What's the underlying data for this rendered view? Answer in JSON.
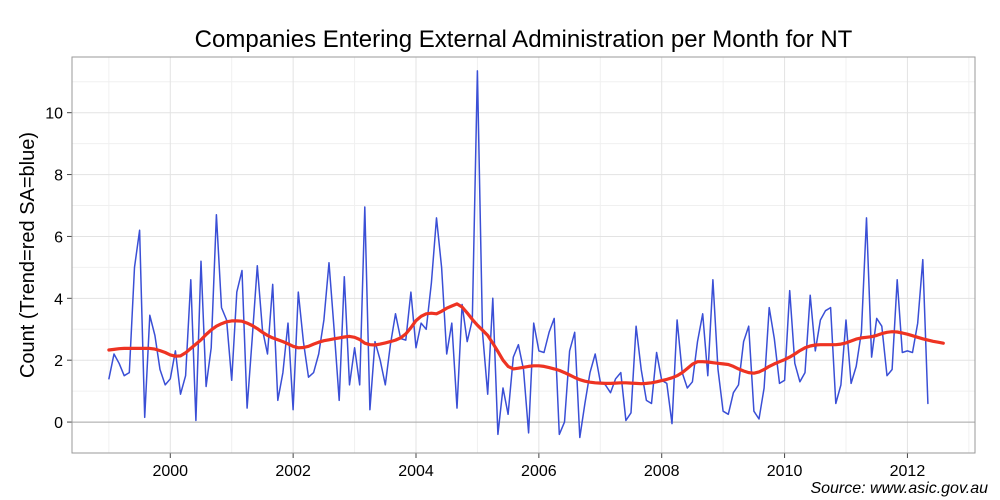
{
  "chart_data": {
    "type": "line",
    "title": "Companies Entering External Administration per Month for NT",
    "xlabel": "",
    "ylabel": "Count (Trend=red SA=blue)",
    "source": "Source: www.asic.gov.au",
    "xlim": [
      1998.4,
      2013.1
    ],
    "ylim": [
      -1.0,
      11.8
    ],
    "x_ticks": [
      2000,
      2002,
      2004,
      2006,
      2008,
      2010,
      2012
    ],
    "x_tick_labels": [
      "2000",
      "2002",
      "2004",
      "2006",
      "2008",
      "2010",
      "2012"
    ],
    "y_ticks": [
      0,
      2,
      4,
      6,
      8,
      10
    ],
    "y_tick_labels": [
      "0",
      "2",
      "4",
      "6",
      "8",
      "10"
    ],
    "grid": true,
    "start": 1999.0,
    "step": 0.0833333,
    "colors": {
      "sa": "#3a4fd6",
      "trend": "#ee3322"
    },
    "series": [
      {
        "name": "SA",
        "color": "#3a4fd6",
        "values": [
          1.4,
          2.2,
          1.9,
          1.5,
          1.6,
          5.0,
          6.2,
          0.15,
          3.45,
          2.8,
          1.7,
          1.2,
          1.4,
          2.3,
          0.9,
          1.5,
          4.6,
          0.05,
          5.2,
          1.15,
          2.4,
          6.7,
          3.7,
          3.3,
          1.35,
          4.2,
          4.9,
          0.45,
          2.7,
          5.05,
          3.0,
          2.2,
          4.45,
          0.7,
          1.6,
          3.2,
          0.4,
          4.2,
          2.6,
          1.45,
          1.6,
          2.2,
          3.3,
          5.15,
          3.0,
          0.7,
          4.7,
          1.2,
          2.4,
          1.2,
          6.95,
          0.4,
          2.6,
          2.0,
          1.2,
          2.5,
          3.5,
          2.7,
          2.65,
          4.2,
          2.4,
          3.2,
          3.0,
          4.5,
          6.6,
          5.0,
          2.2,
          3.2,
          0.45,
          3.8,
          2.6,
          3.3,
          11.35,
          2.9,
          0.9,
          4.0,
          -0.4,
          1.1,
          0.25,
          2.1,
          2.5,
          1.7,
          -0.35,
          3.2,
          2.3,
          2.25,
          2.9,
          3.35,
          -0.4,
          0.0,
          2.3,
          2.9,
          -0.5,
          0.6,
          1.6,
          2.2,
          1.3,
          1.2,
          0.95,
          1.4,
          1.6,
          0.05,
          0.3,
          3.1,
          1.7,
          0.7,
          0.6,
          2.25,
          1.35,
          1.25,
          -0.05,
          3.3,
          1.6,
          1.1,
          1.3,
          2.6,
          3.5,
          1.5,
          4.6,
          1.7,
          0.35,
          0.25,
          0.95,
          1.2,
          2.6,
          3.1,
          0.35,
          0.1,
          1.1,
          3.7,
          2.7,
          1.25,
          1.35,
          4.25,
          1.9,
          1.3,
          1.6,
          4.1,
          2.3,
          3.3,
          3.6,
          3.7,
          0.6,
          1.2,
          3.3,
          1.25,
          1.8,
          2.9,
          6.6,
          2.1,
          3.35,
          3.1,
          1.5,
          1.7,
          4.6,
          2.25,
          2.3,
          2.25,
          3.2,
          5.25,
          0.6
        ]
      },
      {
        "name": "Trend",
        "color": "#ee3322",
        "values": [
          2.33,
          2.35,
          2.37,
          2.38,
          2.38,
          2.38,
          2.38,
          2.38,
          2.38,
          2.36,
          2.31,
          2.25,
          2.17,
          2.13,
          2.14,
          2.24,
          2.38,
          2.52,
          2.66,
          2.83,
          2.98,
          3.1,
          3.18,
          3.24,
          3.27,
          3.27,
          3.26,
          3.2,
          3.12,
          3.02,
          2.9,
          2.8,
          2.72,
          2.66,
          2.6,
          2.53,
          2.45,
          2.4,
          2.41,
          2.45,
          2.52,
          2.58,
          2.63,
          2.66,
          2.69,
          2.72,
          2.75,
          2.77,
          2.74,
          2.67,
          2.55,
          2.5,
          2.49,
          2.52,
          2.56,
          2.6,
          2.65,
          2.72,
          2.85,
          3.05,
          3.28,
          3.42,
          3.5,
          3.52,
          3.5,
          3.58,
          3.68,
          3.75,
          3.82,
          3.72,
          3.53,
          3.32,
          3.13,
          2.97,
          2.8,
          2.55,
          2.28,
          2.0,
          1.8,
          1.72,
          1.74,
          1.77,
          1.8,
          1.82,
          1.82,
          1.8,
          1.76,
          1.72,
          1.67,
          1.6,
          1.52,
          1.44,
          1.37,
          1.32,
          1.29,
          1.27,
          1.26,
          1.25,
          1.25,
          1.26,
          1.27,
          1.27,
          1.26,
          1.25,
          1.24,
          1.25,
          1.27,
          1.3,
          1.34,
          1.38,
          1.43,
          1.5,
          1.6,
          1.73,
          1.87,
          1.95,
          1.95,
          1.94,
          1.92,
          1.9,
          1.88,
          1.86,
          1.8,
          1.72,
          1.65,
          1.6,
          1.58,
          1.62,
          1.7,
          1.8,
          1.88,
          1.95,
          2.02,
          2.1,
          2.2,
          2.31,
          2.4,
          2.46,
          2.49,
          2.5,
          2.5,
          2.5,
          2.5,
          2.52,
          2.56,
          2.62,
          2.68,
          2.72,
          2.74,
          2.76,
          2.8,
          2.86,
          2.9,
          2.92,
          2.91,
          2.88,
          2.84,
          2.79,
          2.74,
          2.69,
          2.65,
          2.61,
          2.58,
          2.55
        ]
      }
    ]
  }
}
